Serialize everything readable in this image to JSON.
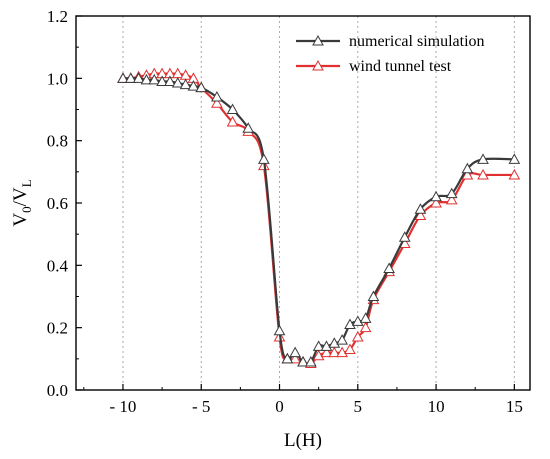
{
  "chart_data": {
    "type": "line",
    "title": "",
    "xlabel": "L(H)",
    "ylabel_main": "V",
    "ylabel_sub": "0",
    "ylabel_sep": "/V",
    "ylabel_sub2": "L",
    "xlim": [
      -13,
      16
    ],
    "ylim": [
      0,
      1.2
    ],
    "xticks": [
      -10,
      -5,
      0,
      5,
      10,
      15
    ],
    "xtick_labels": [
      "- 10",
      "- 5",
      "0",
      "5",
      "10",
      "15"
    ],
    "yticks": [
      0.0,
      0.2,
      0.4,
      0.6,
      0.8,
      1.0,
      1.2
    ],
    "ytick_labels": [
      "0.0",
      "0.2",
      "0.4",
      "0.6",
      "0.8",
      "1.0",
      "1.2"
    ],
    "vertical_gridlines_at": [
      -10,
      -5,
      0,
      5,
      10,
      15
    ],
    "legend_position": "top-right",
    "series": [
      {
        "name": "numerical simulation",
        "color": "#3a3a3a",
        "marker": "open-triangle",
        "x": [
          -10,
          -9.5,
          -9,
          -8.5,
          -8,
          -7.5,
          -7,
          -6.5,
          -6,
          -5.5,
          -5,
          -4,
          -3,
          -2,
          -1,
          0,
          0.5,
          1,
          1.5,
          2,
          2.5,
          3,
          3.5,
          4,
          4.5,
          5,
          5.5,
          6,
          7,
          8,
          9,
          10,
          11,
          12,
          13,
          15
        ],
        "y": [
          1.0,
          1.0,
          1.0,
          0.995,
          0.995,
          0.99,
          0.99,
          0.985,
          0.98,
          0.975,
          0.97,
          0.94,
          0.9,
          0.84,
          0.74,
          0.19,
          0.1,
          0.12,
          0.09,
          0.09,
          0.14,
          0.14,
          0.15,
          0.16,
          0.21,
          0.22,
          0.23,
          0.3,
          0.39,
          0.49,
          0.58,
          0.62,
          0.63,
          0.71,
          0.74,
          0.74
        ]
      },
      {
        "name": "wind tunnel test",
        "color": "#e03030",
        "marker": "open-triangle",
        "x": [
          -10,
          -9.5,
          -9,
          -8.5,
          -8,
          -7.5,
          -7,
          -6.5,
          -6,
          -5.5,
          -5,
          -4,
          -3,
          -2,
          -1,
          0,
          0.5,
          1,
          1.5,
          2,
          2.5,
          3,
          3.5,
          4,
          4.5,
          5,
          5.5,
          6,
          7,
          8,
          9,
          10,
          11,
          12,
          13,
          15
        ],
        "y": [
          1.0,
          1.0,
          1.005,
          1.01,
          1.015,
          1.015,
          1.015,
          1.015,
          1.01,
          1.0,
          0.97,
          0.92,
          0.86,
          0.83,
          0.72,
          0.17,
          0.1,
          0.1,
          0.09,
          0.085,
          0.11,
          0.12,
          0.12,
          0.12,
          0.13,
          0.17,
          0.2,
          0.29,
          0.38,
          0.47,
          0.56,
          0.6,
          0.61,
          0.69,
          0.69,
          0.69
        ]
      }
    ]
  }
}
